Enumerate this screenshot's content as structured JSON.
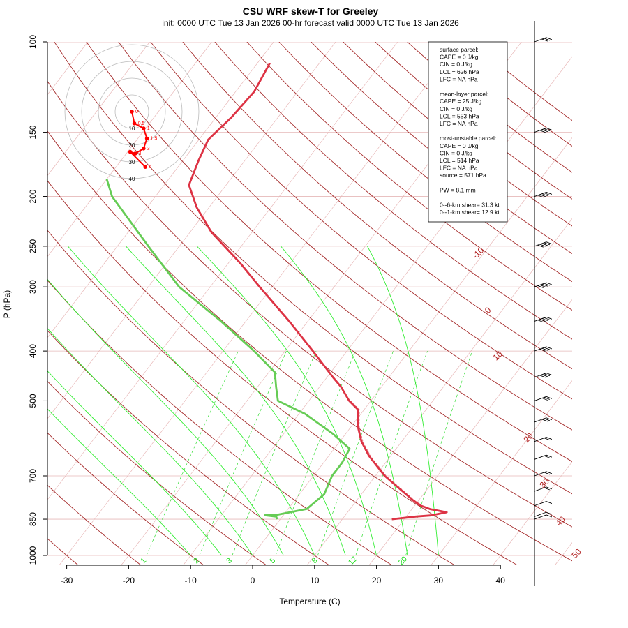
{
  "title": "CSU WRF skew-T for Greeley",
  "subtitle": "init: 0000 UTC Tue 13 Jan 2026     00-hr forecast valid 0000 UTC Tue 13 Jan 2026",
  "info_box": {
    "lines": [
      "surface parcel:",
      "CAPE = 0 J/kg",
      "CIN = 0 J/kg",
      "LCL = 626 hPa",
      "LFC = NA hPa",
      "",
      "mean-layer parcel:",
      "CAPE = 25 J/kg",
      "CIN = 0 J/kg",
      "LCL = 553 hPa",
      "LFC = NA hPa",
      "",
      "most-unstable parcel:",
      "CAPE = 0 J/kg",
      "CIN = 0 J/kg",
      "LCL = 514 hPa",
      "LFC = NA hPa",
      "source = 571 hPa",
      "",
      "PW =  8.1 mm",
      "",
      "0--6-km shear= 31.3 kt",
      "0--1-km shear= 12.9 kt"
    ]
  },
  "colors": {
    "temperature": "#dd3344",
    "dewpoint": "#66cc55",
    "isotherm": "#e8b8b8",
    "dry_adiabat": "#a52a2a",
    "moist_adiabat": "#33ee33",
    "mixing_ratio": "#33dd33",
    "hodograph": "#ff0000"
  },
  "chart_data": {
    "type": "skew-t",
    "xlabel": "Temperature (C)",
    "ylabel": "P (hPa)",
    "x_ticks": [
      -30,
      -20,
      -10,
      0,
      10,
      20,
      30,
      40
    ],
    "y_ticks": [
      1000,
      850,
      700,
      500,
      400,
      300,
      250,
      200,
      150,
      100
    ],
    "isotherm_labels": [
      -10,
      0,
      10,
      20,
      30,
      40,
      50
    ],
    "mixing_ratio_labels": [
      1,
      2,
      3,
      5,
      8,
      12,
      20
    ],
    "temperature_profile": [
      {
        "p": 850,
        "t": 18.0
      },
      {
        "p": 840,
        "t": 21.5
      },
      {
        "p": 836,
        "t": 23.8
      },
      {
        "p": 824,
        "t": 26.0
      },
      {
        "p": 813,
        "t": 23.0
      },
      {
        "p": 800,
        "t": 21.0
      },
      {
        "p": 780,
        "t": 19.0
      },
      {
        "p": 700,
        "t": 11.5
      },
      {
        "p": 640,
        "t": 6.5
      },
      {
        "p": 600,
        "t": 3.5
      },
      {
        "p": 560,
        "t": 1.0
      },
      {
        "p": 520,
        "t": -1.0
      },
      {
        "p": 500,
        "t": -3.5
      },
      {
        "p": 470,
        "t": -6.5
      },
      {
        "p": 450,
        "t": -9.0
      },
      {
        "p": 400,
        "t": -15.5
      },
      {
        "p": 350,
        "t": -23.0
      },
      {
        "p": 300,
        "t": -32.0
      },
      {
        "p": 270,
        "t": -38.0
      },
      {
        "p": 235,
        "t": -46.5
      },
      {
        "p": 210,
        "t": -52.0
      },
      {
        "p": 190,
        "t": -56.0
      },
      {
        "p": 170,
        "t": -57.5
      },
      {
        "p": 155,
        "t": -58.5
      },
      {
        "p": 140,
        "t": -57.5
      },
      {
        "p": 125,
        "t": -57.0
      },
      {
        "p": 110,
        "t": -58.0
      }
    ],
    "dewpoint_profile": [
      {
        "p": 850,
        "td": -0.5
      },
      {
        "p": 840,
        "td": -1.0
      },
      {
        "p": 835,
        "td": -3.0
      },
      {
        "p": 833,
        "td": -1.0
      },
      {
        "p": 812,
        "td": 3.0
      },
      {
        "p": 760,
        "td": 4.0
      },
      {
        "p": 700,
        "td": 3.0
      },
      {
        "p": 660,
        "td": 3.0
      },
      {
        "p": 620,
        "td": 2.5
      },
      {
        "p": 580,
        "td": -2.0
      },
      {
        "p": 530,
        "td": -9.0
      },
      {
        "p": 500,
        "td": -15.0
      },
      {
        "p": 470,
        "td": -17.0
      },
      {
        "p": 440,
        "td": -19.0
      },
      {
        "p": 400,
        "td": -25.0
      },
      {
        "p": 350,
        "td": -34.0
      },
      {
        "p": 300,
        "td": -45.0
      },
      {
        "p": 250,
        "td": -55.0
      },
      {
        "p": 200,
        "td": -67.0
      },
      {
        "p": 185,
        "td": -70.0
      }
    ],
    "wind_profile": [
      {
        "p": 850,
        "spd": 10
      },
      {
        "p": 840,
        "spd": 12
      },
      {
        "p": 800,
        "spd": 18
      },
      {
        "p": 750,
        "spd": 20
      },
      {
        "p": 700,
        "spd": 22
      },
      {
        "p": 650,
        "spd": 25
      },
      {
        "p": 600,
        "spd": 28
      },
      {
        "p": 550,
        "spd": 30
      },
      {
        "p": 500,
        "spd": 35
      },
      {
        "p": 450,
        "spd": 40
      },
      {
        "p": 400,
        "spd": 45
      },
      {
        "p": 350,
        "spd": 50
      },
      {
        "p": 300,
        "spd": 55
      },
      {
        "p": 250,
        "spd": 60
      },
      {
        "p": 200,
        "spd": 55
      },
      {
        "p": 150,
        "spd": 45
      },
      {
        "p": 100,
        "spd": 35
      }
    ],
    "hodograph": {
      "ring_labels": [
        "10",
        "20",
        "30",
        "40"
      ],
      "points": [
        {
          "label": "0",
          "u": 0.0,
          "v": 0.0
        },
        {
          "label": "0.5",
          "u": 1.5,
          "v": -7.0
        },
        {
          "label": "1",
          "u": 7.0,
          "v": -10.0
        },
        {
          "label": "1.5",
          "u": 9.0,
          "v": -16.0
        },
        {
          "label": "3",
          "u": 7.0,
          "v": -22.0
        },
        {
          "label": "4",
          "u": 2.0,
          "v": -25.0
        },
        {
          "label": "",
          "u": -1.0,
          "v": -24.0
        },
        {
          "label": "6",
          "u": 8.0,
          "v": -33.0
        }
      ]
    }
  }
}
